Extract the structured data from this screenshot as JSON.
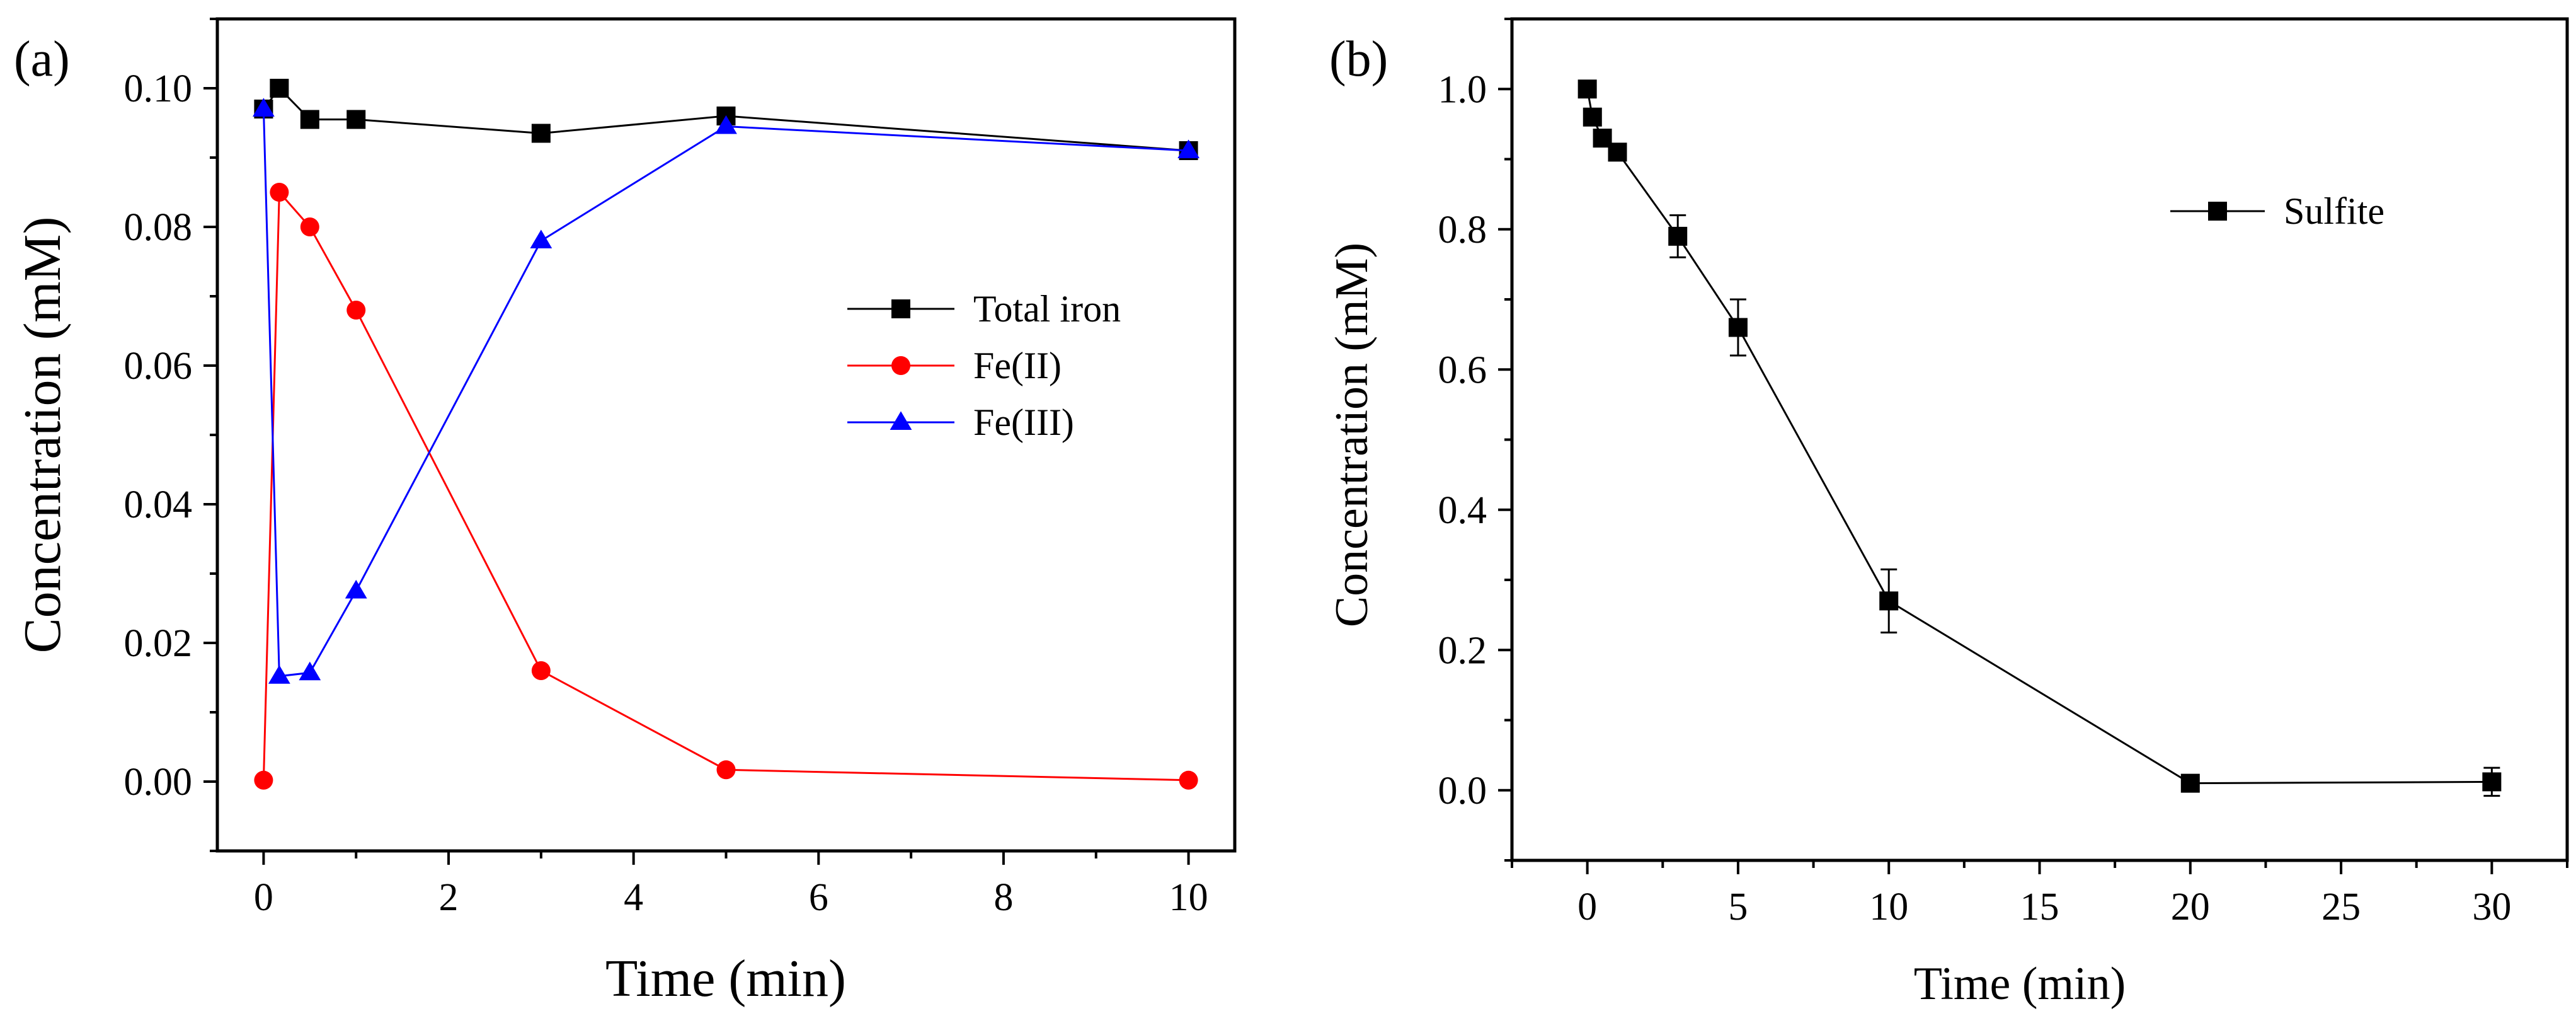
{
  "chart_data": [
    {
      "type": "line",
      "panel_label": "(a)",
      "xlabel": "Time (min)",
      "ylabel": "Concentration (mM)",
      "xlim": [
        -0.5,
        10.5
      ],
      "ylim": [
        -0.01,
        0.11
      ],
      "xticks": [
        0,
        2,
        4,
        6,
        8,
        10
      ],
      "xtick_labels": [
        "0",
        "2",
        "4",
        "6",
        "8",
        "10"
      ],
      "yticks": [
        0.0,
        0.02,
        0.04,
        0.06,
        0.08,
        0.1
      ],
      "ytick_labels": [
        "0.00",
        "0.02",
        "0.04",
        "0.06",
        "0.08",
        "0.10"
      ],
      "grid": false,
      "legend_position": "center-right",
      "series": [
        {
          "name": "Total iron",
          "color": "#000000",
          "marker": "square",
          "x": [
            0,
            0.17,
            0.5,
            1,
            3,
            5,
            10
          ],
          "y": [
            0.097,
            0.1,
            0.0955,
            0.0955,
            0.0935,
            0.096,
            0.091
          ]
        },
        {
          "name": "Fe(II)",
          "color": "#ff0000",
          "marker": "circle",
          "x": [
            0,
            0.17,
            0.5,
            1,
            3,
            5,
            10
          ],
          "y": [
            0.0002,
            0.085,
            0.08,
            0.068,
            0.016,
            0.0017,
            0.0002
          ]
        },
        {
          "name": "Fe(III)",
          "color": "#0000ff",
          "marker": "triangle",
          "x": [
            0,
            0.17,
            0.5,
            1,
            3,
            5,
            10
          ],
          "y": [
            0.097,
            0.0152,
            0.0157,
            0.0275,
            0.078,
            0.0945,
            0.091
          ]
        }
      ]
    },
    {
      "type": "line",
      "panel_label": "(b)",
      "xlabel": "Time (min)",
      "ylabel": "Concentration (mM)",
      "xlim": [
        -2.5,
        32.5
      ],
      "ylim": [
        -0.1,
        1.1
      ],
      "xticks": [
        0,
        5,
        10,
        15,
        20,
        25,
        30
      ],
      "xtick_labels": [
        "0",
        "5",
        "10",
        "15",
        "20",
        "25",
        "30"
      ],
      "yticks": [
        0.0,
        0.2,
        0.4,
        0.6,
        0.8,
        1.0
      ],
      "ytick_labels": [
        "0.0",
        "0.2",
        "0.4",
        "0.6",
        "0.8",
        "1.0"
      ],
      "grid": false,
      "legend_position": "top-right",
      "series": [
        {
          "name": "Sulfite",
          "color": "#000000",
          "marker": "square",
          "x": [
            0,
            0.17,
            0.5,
            1,
            3,
            5,
            10,
            20,
            30
          ],
          "y": [
            1.0,
            0.96,
            0.93,
            0.91,
            0.79,
            0.66,
            0.27,
            0.01,
            0.012
          ],
          "error": [
            0,
            0,
            0,
            0,
            0.03,
            0.04,
            0.045,
            0,
            0.02
          ]
        }
      ]
    }
  ]
}
